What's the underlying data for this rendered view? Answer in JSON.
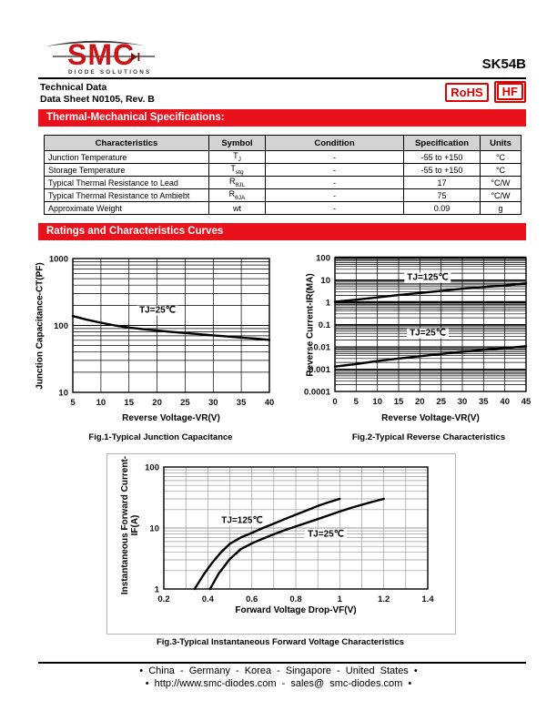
{
  "header": {
    "logo": {
      "brand": "SMC",
      "tagline": "DIODE SOLUTIONS"
    },
    "part_number": "SK54B",
    "doc_line1": "Technical Data",
    "doc_line2": "Data Sheet N0105, Rev. B",
    "badges": {
      "rohs": "RoHS",
      "hf": "HF"
    }
  },
  "section1_title": "Thermal-Mechanical Specifications:",
  "section2_title": "Ratings and Characteristics Curves",
  "table": {
    "columns": [
      "Characteristics",
      "Symbol",
      "Condition",
      "Specification",
      "Units"
    ],
    "rows": [
      {
        "characteristic": "Junction Temperature",
        "symbol_base": "T",
        "symbol_sub": "J",
        "condition": "-",
        "specification": "-55 to +150",
        "units": "°C"
      },
      {
        "characteristic": "Storage Temperature",
        "symbol_base": "T",
        "symbol_sub": "stg",
        "condition": "-",
        "specification": "-55 to +150",
        "units": "°C"
      },
      {
        "characteristic": "Typical Thermal Resistance to Lead",
        "symbol_base": "R",
        "symbol_sub": "θJL",
        "condition": "-",
        "specification": "17",
        "units": "°C/W"
      },
      {
        "characteristic": "Typical Thermal Resistance to Ambiebt",
        "symbol_base": "R",
        "symbol_sub": "θJA",
        "condition": "-",
        "specification": "75",
        "units": "°C/W"
      },
      {
        "characteristic": "Approximate Weight",
        "symbol_base": "wt",
        "symbol_sub": "",
        "condition": "-",
        "specification": "0.09",
        "units": "g"
      }
    ]
  },
  "chart_data": [
    {
      "type": "line",
      "title": "Fig.1-Typical Junction Capacitance",
      "xlabel": "Reverse Voltage-VR(V)",
      "ylabel": "Junction Capacitance-CT(PF)",
      "xlim": [
        5,
        40
      ],
      "xticks": [
        "5",
        "10",
        "15",
        "20",
        "25",
        "30",
        "35",
        "40"
      ],
      "yscale": "log",
      "ylim": [
        10,
        1000
      ],
      "yticks": [
        "1000",
        "100",
        "10"
      ],
      "grid": "on",
      "annotations": [
        {
          "text": "TJ=25℃"
        }
      ],
      "series": [
        {
          "name": "TJ=25℃",
          "x": [
            5,
            7.5,
            10,
            12.5,
            15,
            17.5,
            20,
            22.5,
            25,
            27.5,
            30,
            32.5,
            35,
            37.5,
            40
          ],
          "y": [
            138,
            122,
            110,
            100,
            93,
            88,
            84,
            80,
            77,
            74,
            71,
            68.5,
            66,
            63.5,
            61
          ]
        }
      ]
    },
    {
      "type": "line",
      "title": "Fig.2-Typical Reverse Characteristics",
      "xlabel": "Reverse Voltage-VR(V)",
      "ylabel": "Reverse Current-IR(MA)",
      "xlim": [
        0,
        45
      ],
      "xticks": [
        "0",
        "5",
        "10",
        "15",
        "20",
        "25",
        "30",
        "35",
        "40",
        "45"
      ],
      "yscale": "log",
      "ylim": [
        0.0001,
        100
      ],
      "yticks": [
        "100",
        "10",
        "1",
        "0.1",
        "0.01",
        "0.001",
        "0.0001"
      ],
      "grid": "on",
      "annotations": [
        {
          "text": "TJ=125℃"
        },
        {
          "text": "TJ=25℃"
        }
      ],
      "series": [
        {
          "name": "TJ=125℃",
          "x": [
            0,
            5,
            10,
            15,
            20,
            25,
            30,
            35,
            40,
            45
          ],
          "y": [
            1.05,
            1.3,
            1.65,
            2.1,
            2.6,
            3.2,
            4.0,
            4.8,
            5.7,
            6.8
          ]
        },
        {
          "name": "TJ=25℃",
          "x": [
            0,
            5,
            10,
            15,
            20,
            25,
            30,
            35,
            40,
            45
          ],
          "y": [
            0.0013,
            0.0017,
            0.0023,
            0.003,
            0.0038,
            0.0048,
            0.006,
            0.0073,
            0.0088,
            0.0107
          ]
        }
      ]
    },
    {
      "type": "line",
      "title": "Fig.3-Typical Instantaneous Forward Voltage Characteristics",
      "xlabel": "Forward Voltage Drop-VF(V)",
      "ylabel": "Instantaneous Forward Current-",
      "ylabel2": "IF(A)",
      "xlim": [
        0.2,
        1.4
      ],
      "xticks": [
        "0.2",
        "0.4",
        "0.6",
        "0.8",
        "1",
        "1.2",
        "1.4"
      ],
      "yscale": "log",
      "ylim": [
        1,
        100
      ],
      "yticks": [
        "100",
        "10",
        "1"
      ],
      "grid": "on",
      "annotations": [
        {
          "text": "TJ=125℃"
        },
        {
          "text": "TJ=25℃"
        }
      ],
      "series": [
        {
          "name": "TJ=125℃",
          "x": [
            0.34,
            0.38,
            0.42,
            0.46,
            0.5,
            0.55,
            0.6,
            0.65,
            0.7,
            0.75,
            0.8,
            0.85,
            0.9,
            0.95,
            1.0
          ],
          "y": [
            1,
            1.7,
            2.7,
            4.0,
            5.5,
            7.0,
            8.3,
            10,
            11.8,
            14,
            16.5,
            19.5,
            23,
            26.5,
            30
          ]
        },
        {
          "name": "TJ=25℃",
          "x": [
            0.41,
            0.45,
            0.5,
            0.55,
            0.6,
            0.65,
            0.7,
            0.75,
            0.8,
            0.85,
            0.9,
            0.95,
            1.0,
            1.05,
            1.1,
            1.15,
            1.2
          ],
          "y": [
            1,
            1.8,
            3.1,
            4.5,
            5.6,
            6.7,
            7.9,
            9.2,
            10.6,
            12.2,
            14,
            16.2,
            18.6,
            21.3,
            24,
            27,
            30
          ]
        }
      ]
    }
  ],
  "footer": {
    "line1": "• China - Germany - Korea - Singapore - United States •",
    "line2": "• http://www.smc-diodes.com - sales@ smc-diodes.com •"
  },
  "colors": {
    "banner_red": "#e8111c",
    "logo_red": "#c9151a",
    "badge_red": "#e00000",
    "table_header_bg": "#d3d3d3"
  }
}
